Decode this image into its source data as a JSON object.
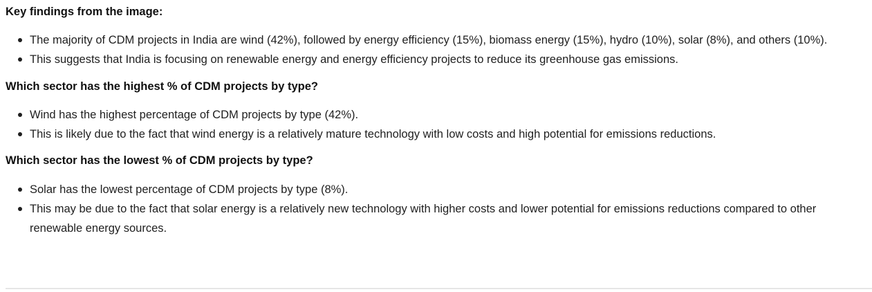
{
  "sections": [
    {
      "heading": "Key findings from the image:",
      "bullets": [
        "The majority of CDM projects in India are wind (42%), followed by energy efficiency (15%), biomass energy (15%), hydro (10%), solar (8%), and others (10%).",
        "This suggests that India is focusing on renewable energy and energy efficiency projects to reduce its greenhouse gas emissions."
      ]
    },
    {
      "heading": "Which sector has the highest % of CDM projects by type?",
      "bullets": [
        "Wind has the highest percentage of CDM projects by type (42%).",
        "This is likely due to the fact that wind energy is a relatively mature technology with low costs and high potential for emissions reductions."
      ]
    },
    {
      "heading": "Which sector has the lowest % of CDM projects by type?",
      "bullets": [
        "Solar has the lowest percentage of CDM projects by type (8%).",
        "This may be due to the fact that solar energy is a relatively new technology with higher costs and lower potential for emissions reductions compared to other renewable energy sources."
      ]
    }
  ]
}
